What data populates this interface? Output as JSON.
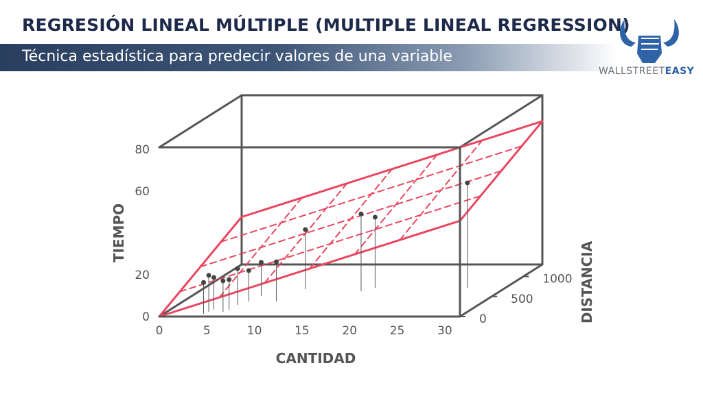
{
  "header": {
    "title": "REGRESIÓN LINEAL MÚLTIPLE (MULTIPLE LINEAL REGRESSION)",
    "subtitle": "Técnica estadística para predecir valores de una variable"
  },
  "logo": {
    "brand": "WALLSTREET",
    "brand_accent": "EASY"
  },
  "chart_data": {
    "type": "scatter3d",
    "x_label": "CANTIDAD",
    "y_label": "TIEMPO",
    "z_label": "DISTANCIA",
    "xlim": [
      0,
      31.6
    ],
    "ylim": [
      0,
      81
    ],
    "zlim": [
      0,
      1300
    ],
    "xticks": [
      0,
      5,
      10,
      15,
      20,
      25,
      30
    ],
    "yticks": [
      0,
      20,
      60,
      80
    ],
    "zticks": [
      0,
      500,
      1000
    ],
    "x": [
      4.2,
      4.4,
      4.6,
      5.9,
      6.2,
      6.3,
      6.9,
      7.3,
      9.8,
      10.8,
      17,
      17.9,
      27.6
    ],
    "z": [
      68,
      120,
      171,
      120,
      171,
      290,
      376,
      513,
      376,
      684,
      632,
      718,
      718
    ],
    "values": [
      15,
      17.4,
      15.4,
      14.8,
      14.4,
      17.4,
      14.8,
      16.1,
      19,
      28.5,
      37,
      33.8,
      50.2
    ],
    "point_color": "#444444",
    "plane_color": "#e8475f",
    "plane": {
      "intercept": 0,
      "coef_x": 1.45,
      "coef_z": 0.0175
    }
  }
}
